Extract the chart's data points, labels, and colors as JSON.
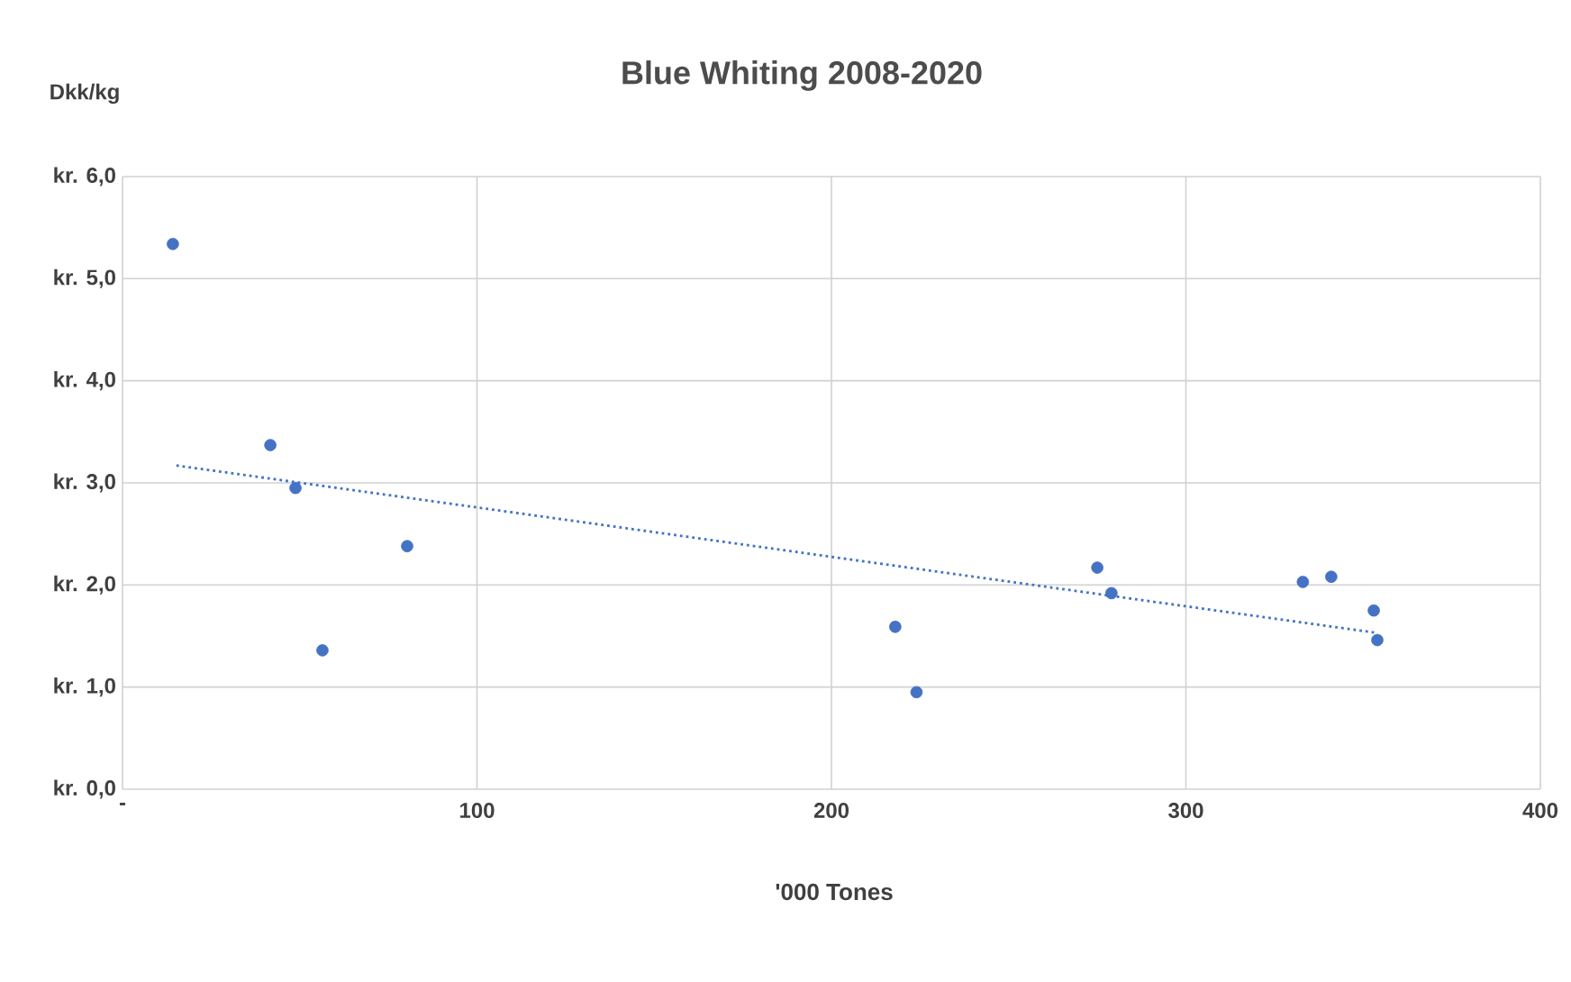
{
  "chart_data": {
    "type": "scatter",
    "title": "Blue Whiting 2008-2020",
    "xlabel": "'000 Tones",
    "ylabel": "Dkk/kg",
    "xlim": [
      0,
      400
    ],
    "ylim": [
      0,
      6
    ],
    "xticks": [
      {
        "value": 0,
        "label": "-"
      },
      100,
      200,
      300,
      400
    ],
    "yticks": [
      {
        "value": 0,
        "label": "kr. 0,0"
      },
      {
        "value": 1,
        "label": "kr. 1,0"
      },
      {
        "value": 2,
        "label": "kr. 2,0"
      },
      {
        "value": 3,
        "label": "kr. 3,0"
      },
      {
        "value": 4,
        "label": "kr. 4,0"
      },
      {
        "value": 5,
        "label": "kr. 5,0"
      },
      {
        "value": 6,
        "label": "kr. 6,0"
      }
    ],
    "grid": true,
    "marker": "circle",
    "series": [
      {
        "color": "#4472c4",
        "x": [
          14.2,
          41.7,
          48.8,
          56.4,
          80.3,
          218,
          224,
          275,
          279,
          333,
          341,
          353,
          354
        ],
        "values": [
          5.34,
          3.37,
          2.95,
          1.36,
          2.38,
          1.59,
          0.95,
          2.17,
          1.92,
          2.03,
          2.08,
          1.75,
          1.46
        ]
      },
      {
        "type": "line",
        "color": "#4472c4",
        "line_style": "dotted",
        "marker": "none",
        "x": [
          15.2,
          354
        ],
        "values": [
          3.17,
          1.53
        ]
      }
    ]
  }
}
